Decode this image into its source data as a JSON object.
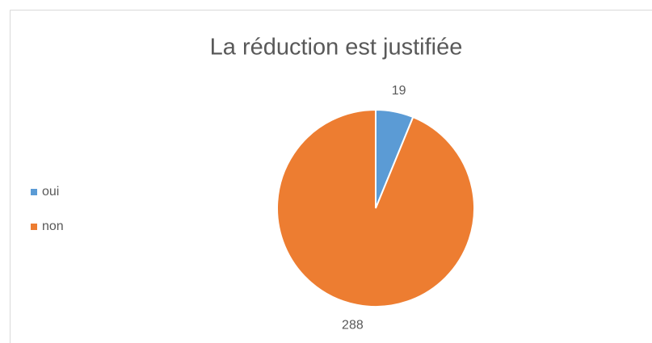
{
  "chart_data": {
    "type": "pie",
    "title": "La réduction est justifiée",
    "categories": [
      "oui",
      "non"
    ],
    "values": [
      19,
      288
    ],
    "colors": [
      "#5b9bd5",
      "#ed7d31"
    ],
    "legend": "left"
  }
}
